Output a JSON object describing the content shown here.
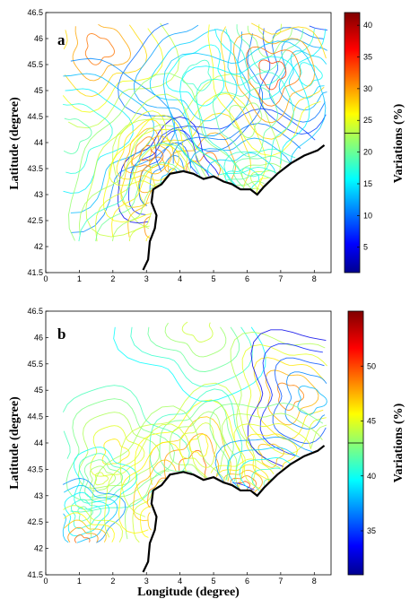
{
  "chart_data": [
    {
      "type": "contour",
      "panel": "a",
      "xlabel": "",
      "ylabel": "Latitude (degree)",
      "x_ticks": [
        "0",
        "1",
        "2",
        "3",
        "4",
        "5",
        "6",
        "7",
        "8"
      ],
      "y_ticks": [
        "41.5",
        "42",
        "42.5",
        "43",
        "43.5",
        "44",
        "44.5",
        "45",
        "45.5",
        "46",
        "46.5"
      ],
      "xlim": [
        0,
        8.5
      ],
      "ylim": [
        41.5,
        46.5
      ],
      "colorbar": {
        "label": "Variations (%)",
        "ticks": [
          "5",
          "10",
          "15",
          "20",
          "25",
          "30",
          "35",
          "40"
        ],
        "range": [
          1,
          42
        ],
        "marker": 23
      },
      "coastline": [
        [
          2.9,
          41.55
        ],
        [
          3.05,
          41.75
        ],
        [
          3.1,
          42.1
        ],
        [
          3.25,
          42.35
        ],
        [
          3.3,
          42.6
        ],
        [
          3.15,
          42.85
        ],
        [
          3.2,
          43.1
        ],
        [
          3.45,
          43.2
        ],
        [
          3.7,
          43.4
        ],
        [
          4.1,
          43.45
        ],
        [
          4.4,
          43.4
        ],
        [
          4.7,
          43.3
        ],
        [
          5.0,
          43.35
        ],
        [
          5.3,
          43.25
        ],
        [
          5.55,
          43.2
        ],
        [
          5.8,
          43.1
        ],
        [
          6.1,
          43.1
        ],
        [
          6.3,
          43.0
        ],
        [
          6.5,
          43.15
        ],
        [
          6.9,
          43.4
        ],
        [
          7.3,
          43.6
        ],
        [
          7.7,
          43.75
        ],
        [
          8.1,
          43.85
        ],
        [
          8.3,
          43.95
        ]
      ],
      "minima": [],
      "maxima": []
    },
    {
      "type": "contour",
      "panel": "b",
      "xlabel": "Longitude (degree)",
      "ylabel": "Latitude (degree)",
      "x_ticks": [
        "0",
        "1",
        "2",
        "3",
        "4",
        "5",
        "6",
        "7",
        "8"
      ],
      "y_ticks": [
        "41.5",
        "42",
        "42.5",
        "43",
        "43.5",
        "44",
        "44.5",
        "45",
        "45.5",
        "46",
        "46.5"
      ],
      "xlim": [
        0,
        8.5
      ],
      "ylim": [
        41.5,
        46.5
      ],
      "colorbar": {
        "label": "Variations (%)",
        "ticks": [
          "35",
          "40",
          "45",
          "50"
        ],
        "range": [
          31,
          55
        ],
        "marker": 43
      },
      "coastline": [
        [
          2.9,
          41.55
        ],
        [
          3.05,
          41.75
        ],
        [
          3.1,
          42.1
        ],
        [
          3.25,
          42.35
        ],
        [
          3.3,
          42.6
        ],
        [
          3.15,
          42.85
        ],
        [
          3.2,
          43.1
        ],
        [
          3.45,
          43.2
        ],
        [
          3.7,
          43.4
        ],
        [
          4.1,
          43.45
        ],
        [
          4.4,
          43.4
        ],
        [
          4.7,
          43.3
        ],
        [
          5.0,
          43.35
        ],
        [
          5.3,
          43.25
        ],
        [
          5.55,
          43.2
        ],
        [
          5.8,
          43.1
        ],
        [
          6.1,
          43.1
        ],
        [
          6.3,
          43.0
        ],
        [
          6.5,
          43.15
        ],
        [
          6.9,
          43.4
        ],
        [
          7.3,
          43.6
        ],
        [
          7.7,
          43.75
        ],
        [
          8.1,
          43.85
        ],
        [
          8.3,
          43.95
        ]
      ],
      "minima": [],
      "maxima": []
    }
  ]
}
